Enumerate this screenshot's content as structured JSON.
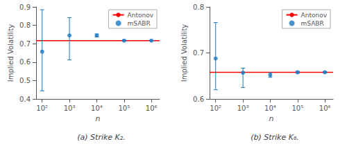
{
  "chart_data": [
    {
      "type": "scatter",
      "title": "(a) Strike K₂.",
      "x_label": "n",
      "y_label": "Implied Volatility",
      "log": "x",
      "xlim": [
        60,
        2000000
      ],
      "xticks": [
        {
          "value": 100,
          "label": "10²"
        },
        {
          "value": 1000,
          "label": "10³"
        },
        {
          "value": 10000,
          "label": "10⁴"
        },
        {
          "value": 100000,
          "label": "10⁵"
        },
        {
          "value": 1000000,
          "label": "10⁶"
        }
      ],
      "ylim": [
        0.4,
        0.9
      ],
      "yticks": [
        0.4,
        0.5,
        0.6,
        0.7,
        0.8,
        0.9
      ],
      "grid": false,
      "legend": "upper right",
      "series": [
        {
          "name": "Antonov",
          "type": "hline",
          "color": "#ff0000",
          "line_style": "solid",
          "values": [
            0.717
          ]
        },
        {
          "name": "mSABR",
          "type": "scatter",
          "color": "#1a78c2",
          "marker": "circle",
          "x": [
            100,
            1000,
            10000,
            100000,
            1000000
          ],
          "values": [
            0.657,
            0.745,
            0.745,
            0.717,
            0.717
          ],
          "error_low": [
            0.213,
            0.133,
            0.008,
            0.003,
            0.001
          ],
          "error_high": [
            0.228,
            0.097,
            0.008,
            0.003,
            0.001
          ]
        }
      ]
    },
    {
      "type": "scatter",
      "title": "(b) Strike K₆.",
      "x_label": "n",
      "y_label": "Implied Volatility",
      "log": "x",
      "xlim": [
        60,
        2000000
      ],
      "xticks": [
        {
          "value": 100,
          "label": "10²"
        },
        {
          "value": 1000,
          "label": "10³"
        },
        {
          "value": 10000,
          "label": "10⁴"
        },
        {
          "value": 100000,
          "label": "10⁵"
        },
        {
          "value": 1000000,
          "label": "10⁶"
        }
      ],
      "ylim": [
        0.6,
        0.8
      ],
      "yticks": [
        0.6,
        0.7,
        0.8
      ],
      "grid": false,
      "legend": "upper right",
      "series": [
        {
          "name": "Antonov",
          "type": "hline",
          "color": "#ff0000",
          "line_style": "solid",
          "values": [
            0.658
          ]
        },
        {
          "name": "mSABR",
          "type": "scatter",
          "color": "#1a78c2",
          "marker": "circle",
          "x": [
            100,
            1000,
            10000,
            100000,
            1000000
          ],
          "values": [
            0.688,
            0.657,
            0.652,
            0.658,
            0.658
          ],
          "error_low": [
            0.068,
            0.032,
            0.005,
            0.002,
            0.001
          ],
          "error_high": [
            0.078,
            0.01,
            0.005,
            0.002,
            0.001
          ]
        }
      ]
    }
  ]
}
